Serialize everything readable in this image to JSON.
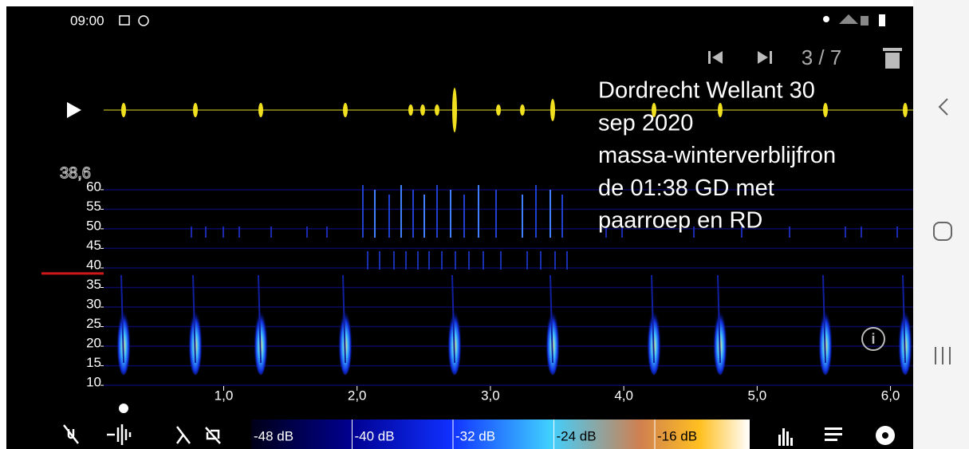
{
  "status_bar": {
    "time": "09:00"
  },
  "toolbar": {
    "counter": "3 / 7"
  },
  "recording": {
    "title_lines": [
      "Dordrecht Wellant 30",
      "sep 2020",
      "massa-winterverblijfron",
      "de 01:38 GD met",
      "paarroep en RD"
    ]
  },
  "spectrogram": {
    "ylim": [
      8.6,
      61.6
    ],
    "yticks": [
      60,
      55,
      50,
      45,
      40,
      35,
      30,
      25,
      20,
      15,
      10
    ],
    "marker": {
      "value": 38.6,
      "label": "38,6"
    },
    "xlim": [
      0.1,
      6.17
    ],
    "xticks": [
      {
        "value": 1,
        "label": "1,0"
      },
      {
        "value": 2,
        "label": "2,0"
      },
      {
        "value": 3,
        "label": "3,0"
      },
      {
        "value": 4,
        "label": "4,0"
      },
      {
        "value": 5,
        "label": "5,0"
      },
      {
        "value": 6,
        "label": "6,0"
      }
    ]
  },
  "colorbar": {
    "labels": [
      "-48 dB",
      "-40 dB",
      "-32 dB",
      "-24 dB",
      "-16 dB"
    ]
  }
}
